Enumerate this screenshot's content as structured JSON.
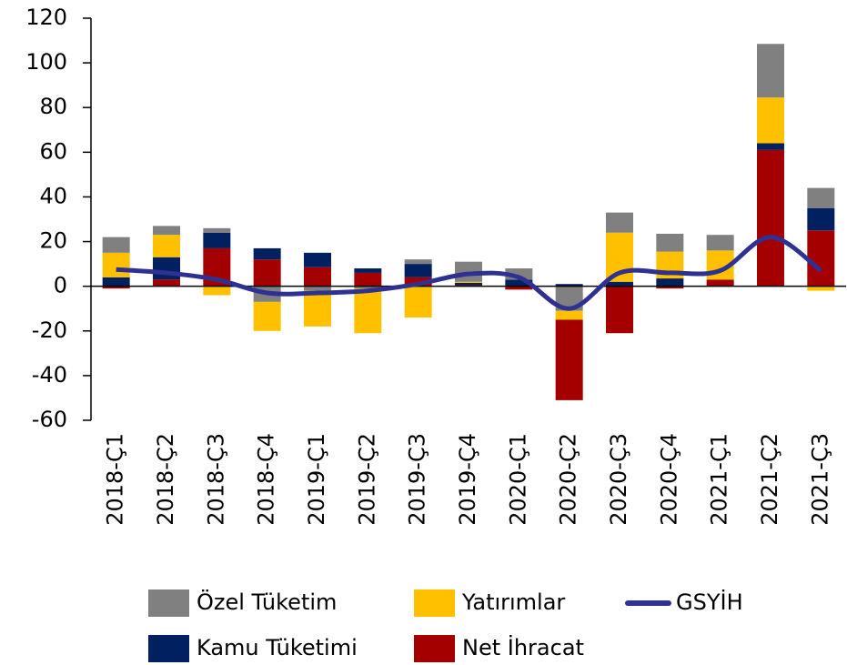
{
  "chart_data": {
    "type": "bar",
    "categories": [
      "2018-Ç1",
      "2018-Ç2",
      "2018-Ç3",
      "2018-Ç4",
      "2019-Ç1",
      "2019-Ç2",
      "2019-Ç3",
      "2019-Ç4",
      "2020-Ç1",
      "2020-Ç2",
      "2020-Ç3",
      "2020-Ç4",
      "2021-Ç1",
      "2021-Ç2",
      "2021-Ç3"
    ],
    "series": [
      {
        "name": "Özel Tüketim",
        "color": "#808080",
        "type": "bar",
        "values": [
          7,
          4,
          2,
          -7,
          -2,
          -1,
          2,
          9,
          5,
          -11,
          9,
          8,
          7,
          24,
          9
        ]
      },
      {
        "name": "Yatırımlar",
        "color": "#FFC000",
        "type": "bar",
        "values": [
          11,
          10,
          -4,
          -13,
          -16,
          -20,
          -14,
          0.5,
          0,
          -4,
          22,
          12,
          13,
          20.5,
          -2
        ]
      },
      {
        "name": "GSYİH",
        "color": "#2E3192",
        "type": "line",
        "values": [
          7.5,
          6,
          3,
          -3,
          -3,
          -2,
          1,
          5.5,
          4,
          -10,
          6,
          6,
          7,
          22,
          7
        ]
      },
      {
        "name": "Kamu Tüketimi",
        "color": "#002060",
        "type": "bar",
        "values": [
          4,
          10,
          7,
          5,
          6.5,
          2,
          6,
          1,
          3,
          1,
          2,
          3.5,
          0,
          3,
          10
        ]
      },
      {
        "name": "Net İhracat",
        "color": "#A50000",
        "type": "bar",
        "values": [
          -1,
          3,
          17,
          12,
          8.5,
          6,
          4,
          0.5,
          -1.5,
          -36,
          -21,
          -1,
          3,
          61,
          25
        ]
      }
    ],
    "ylim": [
      -60,
      120
    ],
    "yticks": [
      -60,
      -40,
      -20,
      0,
      20,
      40,
      60,
      80,
      100,
      120
    ]
  }
}
